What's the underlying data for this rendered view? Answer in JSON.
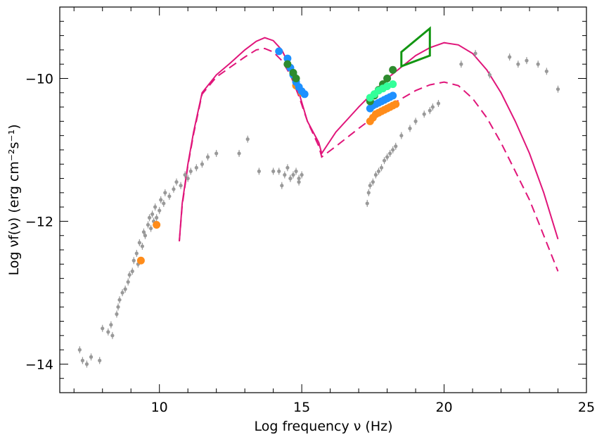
{
  "chart_data": {
    "type": "scatter",
    "title": "",
    "xlabel": "Log frequency ν (Hz)",
    "ylabel": "Log νf(ν) (erg cm⁻²s⁻¹)",
    "xlim": [
      6.5,
      25
    ],
    "ylim": [
      -14.4,
      -9.0
    ],
    "x_ticks": [
      10,
      15,
      20,
      25
    ],
    "y_ticks": [
      -14,
      -12,
      -10
    ],
    "x_tick_labels": [
      "10",
      "15",
      "20",
      "25"
    ],
    "y_tick_labels": [
      "−14",
      "−12",
      "−10"
    ],
    "grid": false,
    "colors": {
      "archival": "#999999",
      "model": "#e0157a",
      "orange": "#ff8c1a",
      "blue": "#1e90ff",
      "dark_green": "#2e8b2e",
      "light_green": "#33ff99",
      "bowtie": "#129612"
    },
    "series": [
      {
        "style": "model-solid",
        "x": [
          10.7,
          10.8,
          11.0,
          11.2,
          11.5,
          12.0,
          12.5,
          13.0,
          13.4,
          13.7,
          14.0,
          14.3,
          14.6,
          14.9,
          15.2,
          15.6,
          15.7,
          16.2,
          17.0,
          18.0,
          19.0,
          19.5,
          20.0,
          20.5,
          21.0,
          21.5,
          22.0,
          22.5,
          23.0,
          23.5,
          24.0
        ],
        "y": [
          -12.28,
          -11.75,
          -11.2,
          -10.75,
          -10.2,
          -9.95,
          -9.78,
          -9.6,
          -9.48,
          -9.43,
          -9.47,
          -9.6,
          -9.85,
          -10.2,
          -10.6,
          -10.9,
          -11.05,
          -10.75,
          -10.4,
          -10.0,
          -9.68,
          -9.57,
          -9.5,
          -9.53,
          -9.65,
          -9.88,
          -10.2,
          -10.6,
          -11.05,
          -11.6,
          -12.25
        ]
      },
      {
        "style": "model-dashed",
        "x": [
          10.7,
          10.8,
          11.0,
          11.2,
          11.5,
          12.0,
          12.5,
          13.0,
          13.4,
          13.7,
          14.0,
          14.3,
          14.6,
          14.9,
          15.2,
          15.6,
          15.7,
          16.2,
          17.0,
          18.0,
          19.0,
          19.5,
          20.0,
          20.5,
          21.0,
          21.5,
          22.0,
          22.5,
          23.0,
          23.5,
          24.0
        ],
        "y": [
          -12.28,
          -11.78,
          -11.22,
          -10.78,
          -10.22,
          -9.98,
          -9.84,
          -9.7,
          -9.6,
          -9.58,
          -9.63,
          -9.75,
          -9.95,
          -10.25,
          -10.6,
          -10.95,
          -11.1,
          -10.95,
          -10.7,
          -10.4,
          -10.17,
          -10.09,
          -10.05,
          -10.1,
          -10.28,
          -10.55,
          -10.9,
          -11.3,
          -11.7,
          -12.2,
          -12.7
        ]
      },
      {
        "style": "archival",
        "x": [
          7.2,
          7.3,
          7.45,
          7.6,
          7.9,
          8.0,
          8.2,
          8.3,
          8.35,
          8.5,
          8.55,
          8.6,
          8.7,
          8.8,
          8.9,
          8.95,
          9.05,
          9.1,
          9.2,
          9.25,
          9.3,
          9.4,
          9.45,
          9.5,
          9.6,
          9.65,
          9.7,
          9.75,
          9.8,
          9.85,
          9.9,
          10.0,
          10.05,
          10.15,
          10.2,
          10.35,
          10.5,
          10.6,
          10.75,
          10.9,
          11.0,
          11.1,
          11.3,
          11.5,
          11.7,
          12.0,
          12.8,
          13.1,
          13.5,
          14.3,
          14.6,
          14.9
        ],
        "y": [
          -13.8,
          -13.95,
          -14.0,
          -13.9,
          -13.95,
          -13.5,
          -13.55,
          -13.45,
          -13.6,
          -13.3,
          -13.2,
          -13.1,
          -13.0,
          -12.95,
          -12.85,
          -12.75,
          -12.7,
          -12.55,
          -12.45,
          -12.6,
          -12.3,
          -12.35,
          -12.15,
          -12.2,
          -12.05,
          -11.95,
          -12.1,
          -11.9,
          -12.0,
          -11.8,
          -11.95,
          -11.85,
          -11.7,
          -11.75,
          -11.6,
          -11.65,
          -11.55,
          -11.45,
          -11.5,
          -11.35,
          -11.4,
          -11.3,
          -11.25,
          -11.2,
          -11.1,
          -11.05,
          -11.05,
          -10.85,
          -11.3,
          -11.5,
          -11.4,
          -11.45
        ]
      },
      {
        "style": "archival",
        "x": [
          14.0,
          14.2,
          14.4,
          14.5,
          14.6,
          14.7,
          14.8,
          14.9,
          15.0,
          17.3,
          17.35,
          17.4,
          17.5,
          17.6,
          17.7,
          17.8,
          17.9,
          18.0,
          18.1,
          18.2,
          18.3,
          18.5,
          18.8,
          19.0,
          19.3,
          19.5,
          19.6,
          19.8,
          20.6,
          21.1,
          21.6,
          22.3,
          22.6,
          22.9,
          23.3,
          23.6,
          24.0
        ],
        "y": [
          -11.3,
          -11.3,
          -11.35,
          -11.25,
          -11.4,
          -11.35,
          -11.3,
          -11.4,
          -11.35,
          -11.75,
          -11.6,
          -11.5,
          -11.45,
          -11.35,
          -11.3,
          -11.25,
          -11.15,
          -11.1,
          -11.05,
          -11.0,
          -10.95,
          -10.8,
          -10.7,
          -10.6,
          -10.5,
          -10.45,
          -10.4,
          -10.35,
          -9.8,
          -9.65,
          -9.95,
          -9.7,
          -9.8,
          -9.75,
          -9.8,
          -9.9,
          -10.15
        ]
      },
      {
        "name": "orange",
        "x": [
          9.35,
          9.9,
          14.8,
          15.0,
          17.4,
          17.5,
          17.6,
          17.7,
          17.8,
          17.9,
          18.0,
          18.1,
          18.2,
          18.3
        ],
        "y": [
          -12.55,
          -12.05,
          -10.1,
          -10.2,
          -10.6,
          -10.55,
          -10.5,
          -10.48,
          -10.46,
          -10.44,
          -10.42,
          -10.4,
          -10.38,
          -10.36
        ]
      },
      {
        "name": "blue",
        "x": [
          14.2,
          14.5,
          14.6,
          14.7,
          14.8,
          14.9,
          15.0,
          15.1,
          17.4,
          17.5,
          17.6,
          17.7,
          17.8,
          17.9,
          18.0,
          18.1,
          18.2
        ],
        "y": [
          -9.62,
          -9.72,
          -9.85,
          -9.95,
          -10.05,
          -10.12,
          -10.18,
          -10.22,
          -10.42,
          -10.38,
          -10.36,
          -10.34,
          -10.32,
          -10.3,
          -10.28,
          -10.26,
          -10.24
        ]
      },
      {
        "name": "dark_green",
        "x": [
          14.5,
          14.7,
          14.8,
          17.4,
          17.55,
          17.7,
          17.85,
          18.0,
          18.2
        ],
        "y": [
          -9.8,
          -9.92,
          -10.0,
          -10.32,
          -10.24,
          -10.16,
          -10.08,
          -10.0,
          -9.88
        ]
      },
      {
        "name": "light_green",
        "x": [
          17.4,
          17.55,
          17.7,
          17.85,
          18.0,
          18.2
        ],
        "y": [
          -10.27,
          -10.22,
          -10.17,
          -10.14,
          -10.11,
          -10.08
        ]
      }
    ],
    "bowtie": {
      "x": [
        18.5,
        19.5,
        19.5,
        18.5
      ],
      "y": [
        -9.63,
        -9.3,
        -9.68,
        -9.83
      ]
    }
  }
}
